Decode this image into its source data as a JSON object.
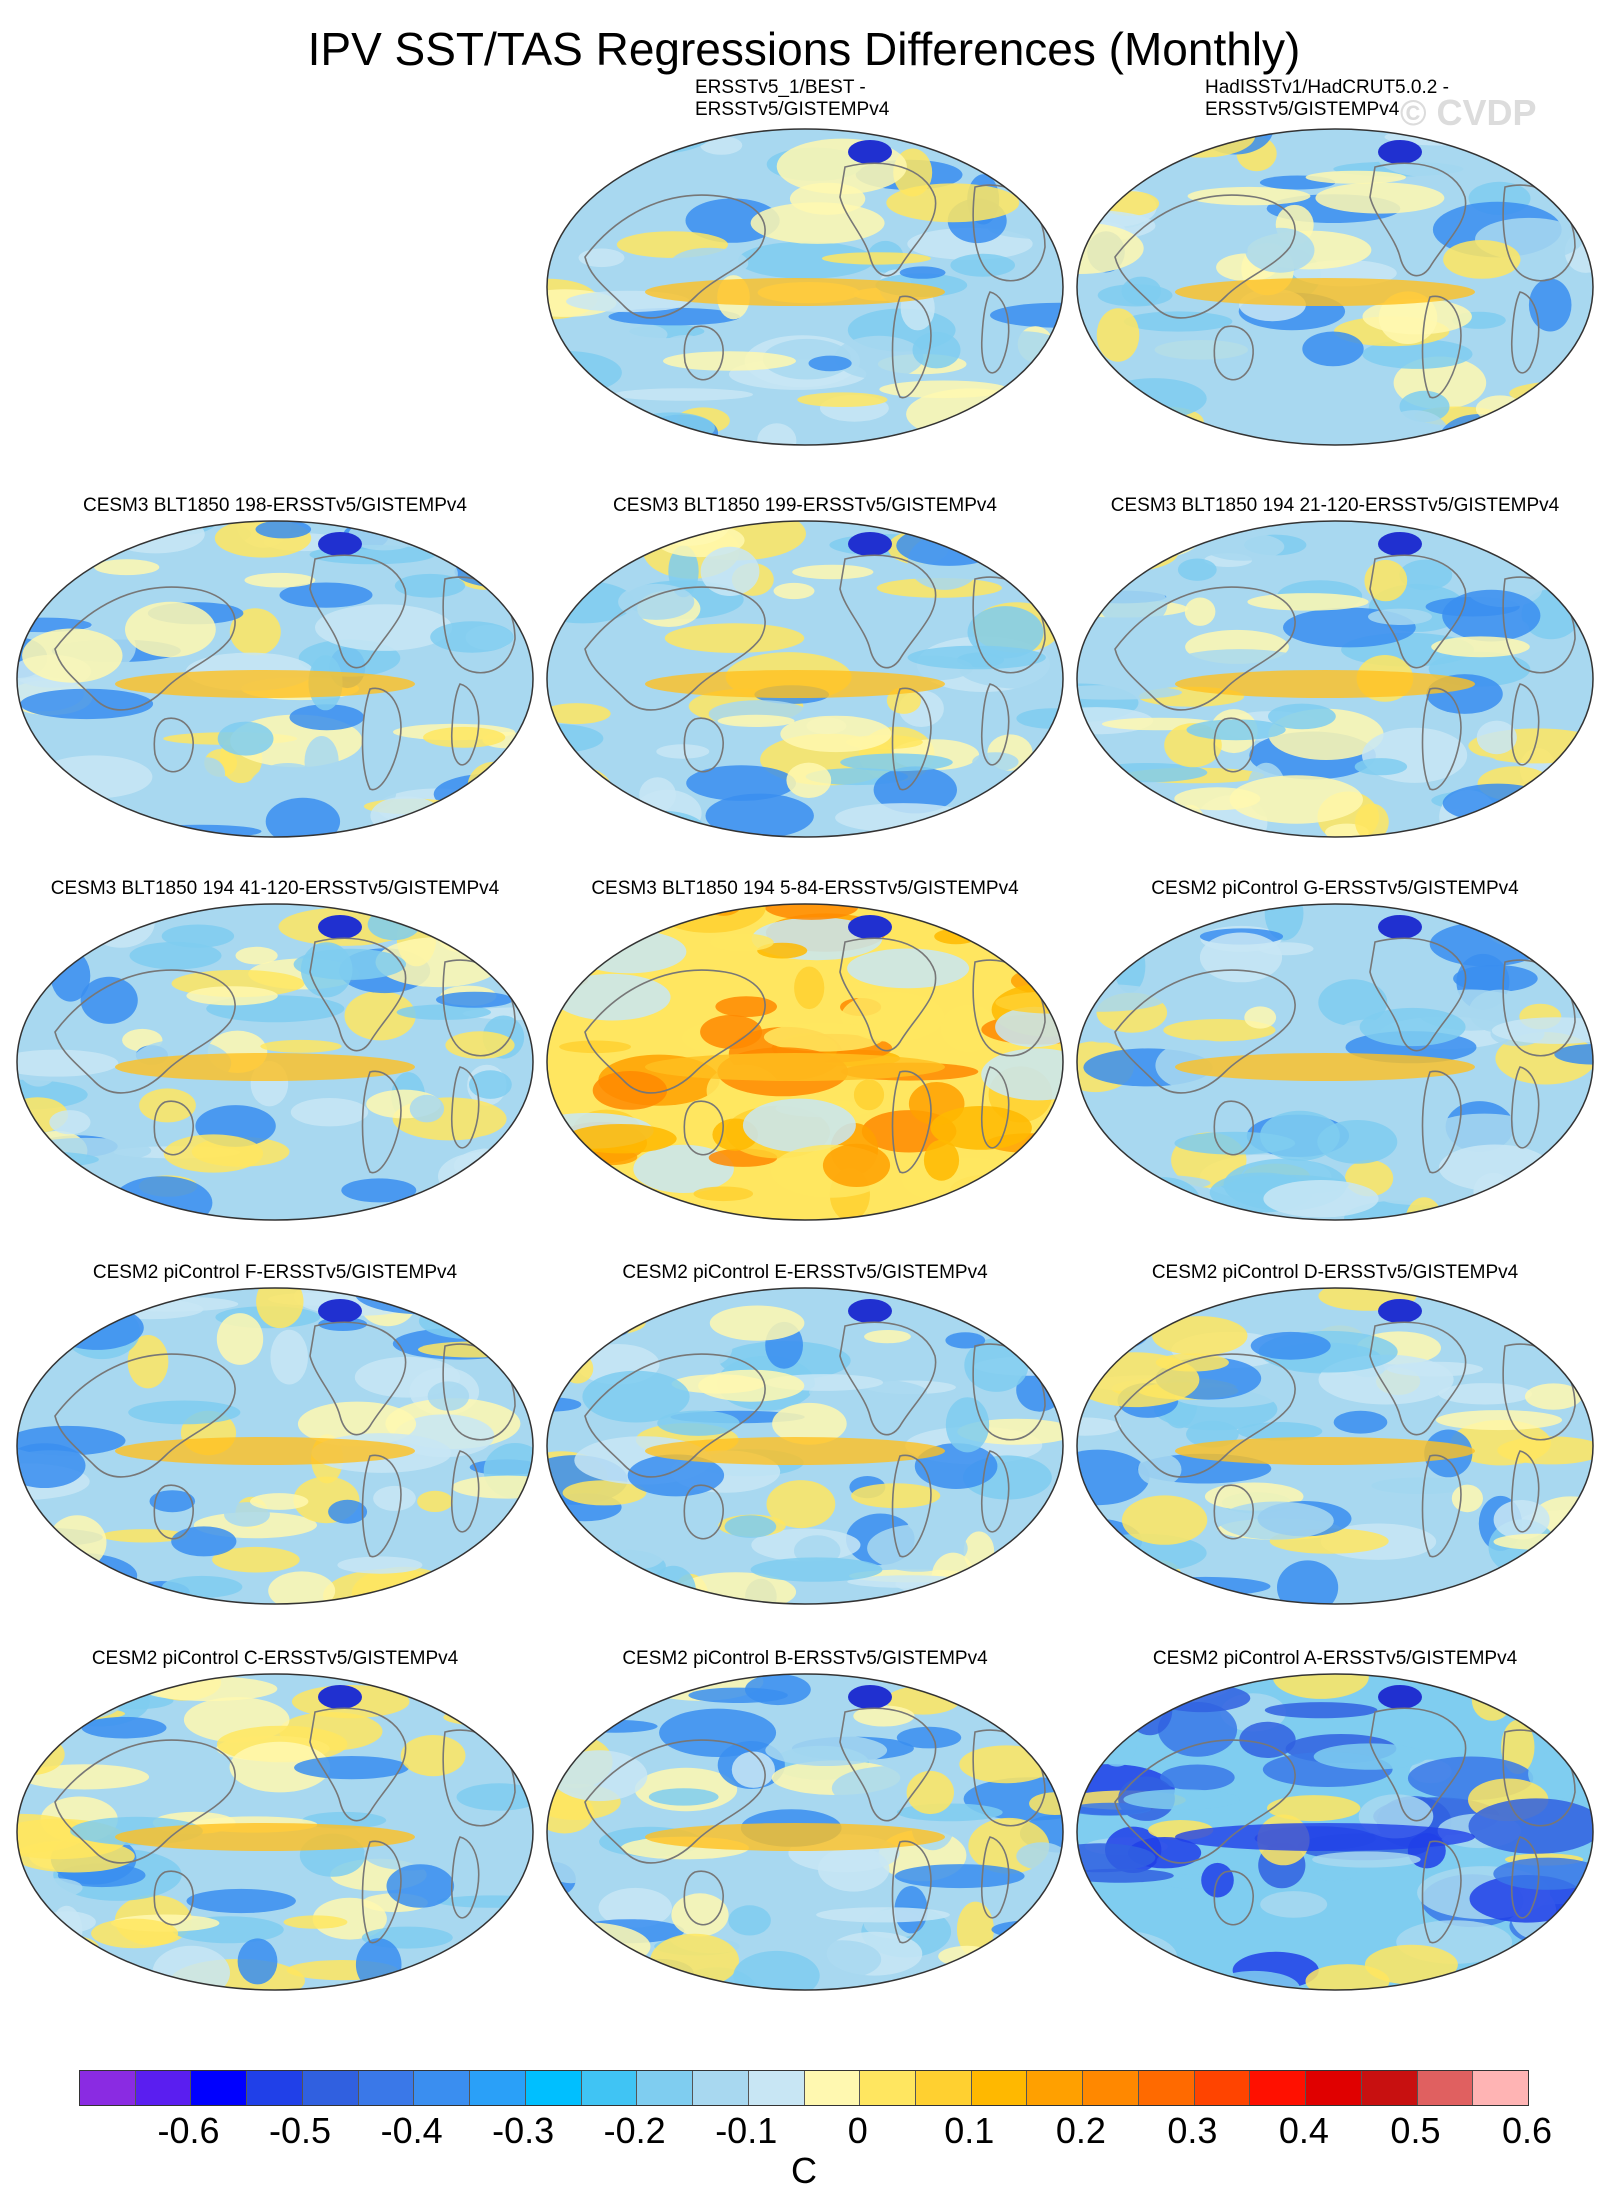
{
  "title": "IPV SST/TAS Regressions Differences (Monthly)",
  "watermark": "© CVDP",
  "panels": [
    {
      "title_lines": [
        "ERSSTv5_1/BEST -",
        "ERSSTv5/GISTEMPv4"
      ],
      "pattern": "obs1"
    },
    {
      "title_lines": [
        "HadISSTv1/HadCRUT5.0.2 -",
        "ERSSTv5/GISTEMPv4"
      ],
      "pattern": "obs2"
    },
    {
      "title_lines": [
        "CESM3 BLT1850 198-ERSSTv5/GISTEMPv4"
      ],
      "pattern": "warm-tropic"
    },
    {
      "title_lines": [
        "CESM3 BLT1850 199-ERSSTv5/GISTEMPv4"
      ],
      "pattern": "warm-tropic2"
    },
    {
      "title_lines": [
        "CESM3 BLT1850 194 21-120-ERSSTv5/GISTEMPv4"
      ],
      "pattern": "southern"
    },
    {
      "title_lines": [
        "CESM3 BLT1850 194 41-120-ERSSTv5/GISTEMPv4"
      ],
      "pattern": "southern2"
    },
    {
      "title_lines": [
        "CESM3 BLT1850 194 5-84-ERSSTv5/GISTEMPv4"
      ],
      "pattern": "warm"
    },
    {
      "title_lines": [
        "CESM2 piControl G-ERSSTv5/GISTEMPv4"
      ],
      "pattern": "mixed"
    },
    {
      "title_lines": [
        "CESM2 piControl F-ERSSTv5/GISTEMPv4"
      ],
      "pattern": "mixed2"
    },
    {
      "title_lines": [
        "CESM2 piControl E-ERSSTv5/GISTEMPv4"
      ],
      "pattern": "mixed3"
    },
    {
      "title_lines": [
        "CESM2 piControl D-ERSSTv5/GISTEMPv4"
      ],
      "pattern": "mixed4"
    },
    {
      "title_lines": [
        "CESM2 piControl C-ERSSTv5/GISTEMPv4"
      ],
      "pattern": "mixed5"
    },
    {
      "title_lines": [
        "CESM2 piControl B-ERSSTv5/GISTEMPv4"
      ],
      "pattern": "mixed6"
    },
    {
      "title_lines": [
        "CESM2 piControl A-ERSSTv5/GISTEMPv4"
      ],
      "pattern": "cold"
    }
  ],
  "colorbar": {
    "colors": [
      "#8a2be2",
      "#5a1ef0",
      "#0000ff",
      "#2040e8",
      "#3060e0",
      "#3a78e8",
      "#3a8ef0",
      "#2aa0f8",
      "#00bfff",
      "#40c4f4",
      "#7fcdf0",
      "#a8d8f0",
      "#c8e6f4",
      "#fff8b0",
      "#ffe660",
      "#ffd030",
      "#ffb800",
      "#ffa000",
      "#ff8800",
      "#ff6a00",
      "#ff4400",
      "#ff1000",
      "#e00000",
      "#c81010",
      "#e06060",
      "#ffb4b4"
    ],
    "ticks": [
      "-0.6",
      "-0.5",
      "-0.4",
      "-0.3",
      "-0.2",
      "-0.1",
      "0",
      "0.1",
      "0.2",
      "0.3",
      "0.4",
      "0.5",
      "0.6"
    ],
    "units": "C"
  }
}
